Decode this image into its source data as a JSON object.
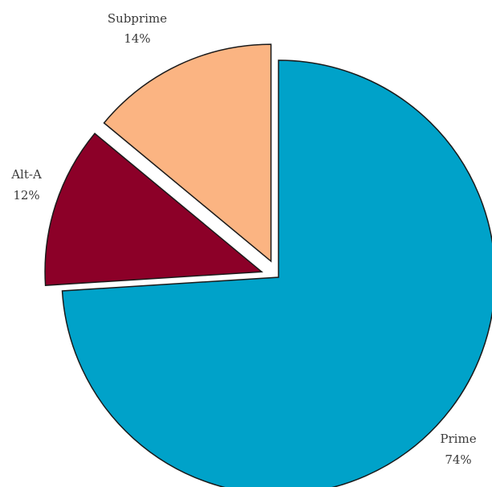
{
  "chart_data": {
    "type": "pie",
    "title": "",
    "slices": [
      {
        "name": "Prime",
        "value": 74,
        "value_label": "74%",
        "color": "#00a2c9",
        "exploded": false
      },
      {
        "name": "Alt-A",
        "value": 12,
        "value_label": "12%",
        "color": "#8c0028",
        "exploded": true
      },
      {
        "name": "Subprime",
        "value": 14,
        "value_label": "14%",
        "color": "#fbb482",
        "exploded": true
      }
    ],
    "legend": "none",
    "stroke_color": "#1a1a1a"
  }
}
